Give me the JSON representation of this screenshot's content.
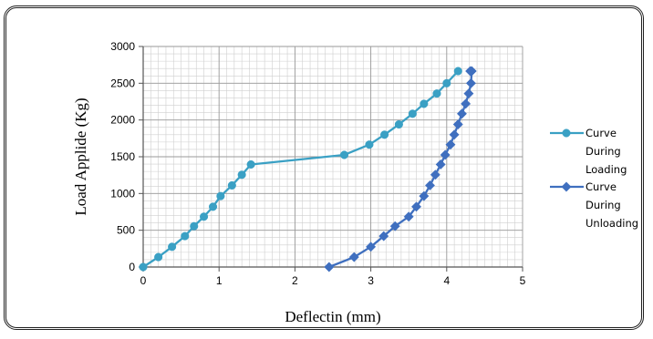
{
  "chart_data": {
    "type": "line",
    "xlabel": "Deflectin (mm)",
    "ylabel": "Load Applide (Kg)",
    "xlim": [
      0,
      5
    ],
    "ylim": [
      0,
      3000
    ],
    "x_ticks": [
      "0",
      "1",
      "2",
      "3",
      "4",
      "5"
    ],
    "y_ticks": [
      "0",
      "500",
      "1000",
      "1500",
      "2000",
      "2500",
      "3000"
    ],
    "grid": true,
    "legend_position": "right",
    "series": [
      {
        "name": "Curve During Loading",
        "legend_lines": [
          "Curve",
          "During",
          "Loading"
        ],
        "color": "#3AA0C4",
        "marker": "circle",
        "x": [
          0,
          0.2,
          0.38,
          0.55,
          0.67,
          0.8,
          0.92,
          1.02,
          1.17,
          1.3,
          1.42,
          2.65,
          2.98,
          3.18,
          3.37,
          3.55,
          3.7,
          3.87,
          4.0,
          4.15
        ],
        "y": [
          0,
          135,
          275,
          420,
          555,
          685,
          820,
          965,
          1110,
          1255,
          1395,
          1525,
          1665,
          1800,
          1940,
          2085,
          2220,
          2360,
          2500,
          2665
        ]
      },
      {
        "name": "Curve During Unloading",
        "legend_lines": [
          "Curve",
          "During",
          "Unloading"
        ],
        "color": "#3F6FBF",
        "marker": "diamond",
        "x": [
          2.45,
          2.78,
          3.0,
          3.17,
          3.32,
          3.5,
          3.6,
          3.7,
          3.78,
          3.85,
          3.92,
          3.98,
          4.05,
          4.1,
          4.15,
          4.2,
          4.25,
          4.29,
          4.32,
          4.33,
          4.31
        ],
        "y": [
          0,
          135,
          275,
          420,
          555,
          685,
          820,
          965,
          1110,
          1255,
          1395,
          1525,
          1665,
          1800,
          1940,
          2085,
          2220,
          2360,
          2500,
          2665,
          2665
        ]
      }
    ]
  }
}
